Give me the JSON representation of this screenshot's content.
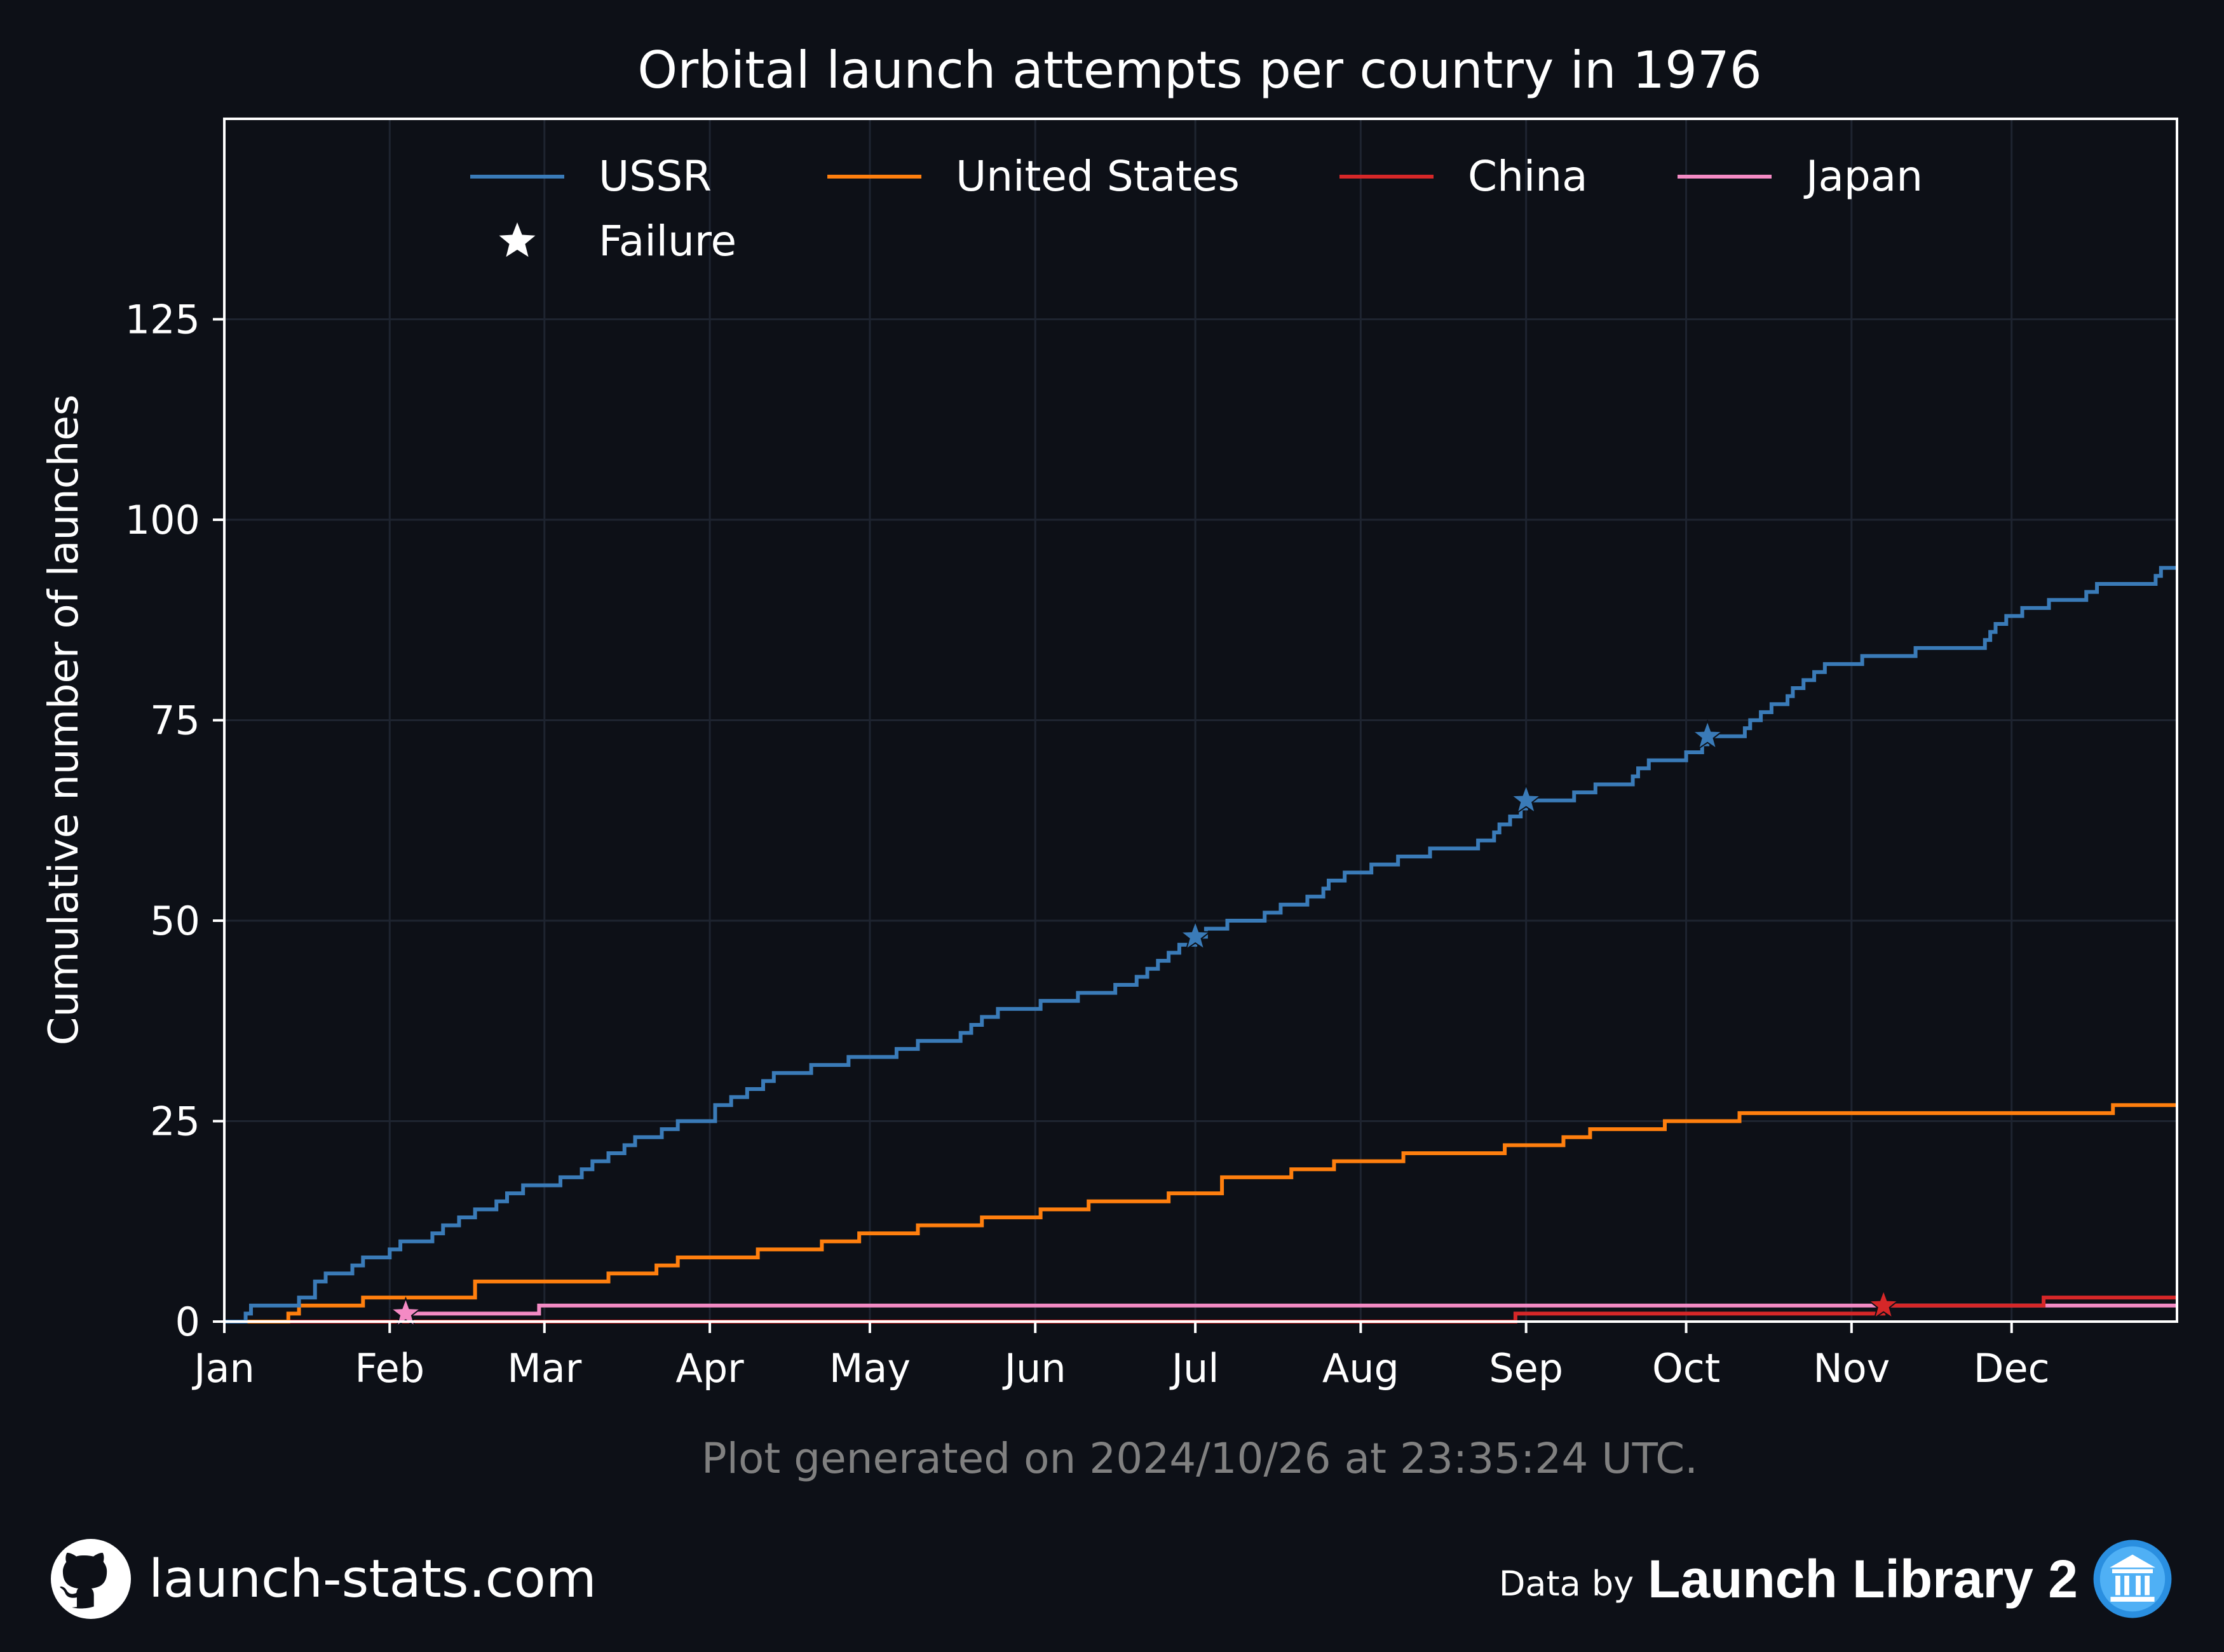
{
  "chart_data": {
    "type": "line",
    "step": true,
    "title": "Orbital launch attempts per country in 1976",
    "xlabel": "",
    "ylabel": "Cumulative number of launches",
    "xlim": [
      "1976-01-01",
      "1977-01-01"
    ],
    "ylim": [
      0,
      150
    ],
    "yticks": [
      0,
      25,
      50,
      75,
      100,
      125
    ],
    "xticks": [
      {
        "date": "1976-01-01",
        "label": "Jan"
      },
      {
        "date": "1976-02-01",
        "label": "Feb"
      },
      {
        "date": "1976-03-01",
        "label": "Mar"
      },
      {
        "date": "1976-04-01",
        "label": "Apr"
      },
      {
        "date": "1976-05-01",
        "label": "May"
      },
      {
        "date": "1976-06-01",
        "label": "Jun"
      },
      {
        "date": "1976-07-01",
        "label": "Jul"
      },
      {
        "date": "1976-08-01",
        "label": "Aug"
      },
      {
        "date": "1976-09-01",
        "label": "Sep"
      },
      {
        "date": "1976-10-01",
        "label": "Oct"
      },
      {
        "date": "1976-11-01",
        "label": "Nov"
      },
      {
        "date": "1976-12-01",
        "label": "Dec"
      }
    ],
    "grid": true,
    "legend_position": "top",
    "series": [
      {
        "name": "USSR",
        "color": "#3a7bb8",
        "x": [
          "1976-01-05",
          "1976-01-06",
          "1976-01-15",
          "1976-01-18",
          "1976-01-20",
          "1976-01-25",
          "1976-01-27",
          "1976-02-01",
          "1976-02-03",
          "1976-02-09",
          "1976-02-11",
          "1976-02-14",
          "1976-02-17",
          "1976-02-21",
          "1976-02-23",
          "1976-02-26",
          "1976-03-04",
          "1976-03-08",
          "1976-03-10",
          "1976-03-13",
          "1976-03-16",
          "1976-03-18",
          "1976-03-23",
          "1976-03-26",
          "1976-04-02",
          "1976-04-05",
          "1976-04-08",
          "1976-04-11",
          "1976-04-13",
          "1976-04-20",
          "1976-04-27",
          "1976-05-06",
          "1976-05-10",
          "1976-05-18",
          "1976-05-20",
          "1976-05-22",
          "1976-05-25",
          "1976-06-02",
          "1976-06-09",
          "1976-06-16",
          "1976-06-20",
          "1976-06-22",
          "1976-06-24",
          "1976-06-26",
          "1976-06-28",
          "1976-07-01",
          "1976-07-03",
          "1976-07-07",
          "1976-07-14",
          "1976-07-17",
          "1976-07-22",
          "1976-07-25",
          "1976-07-26",
          "1976-07-29",
          "1976-08-03",
          "1976-08-08",
          "1976-08-14",
          "1976-08-23",
          "1976-08-26",
          "1976-08-27",
          "1976-08-29",
          "1976-08-31",
          "1976-09-01",
          "1976-09-10",
          "1976-09-14",
          "1976-09-21",
          "1976-09-22",
          "1976-09-24",
          "1976-10-01",
          "1976-10-04",
          "1976-10-05",
          "1976-10-12",
          "1976-10-13",
          "1976-10-15",
          "1976-10-17",
          "1976-10-20",
          "1976-10-21",
          "1976-10-23",
          "1976-10-25",
          "1976-10-27",
          "1976-11-03",
          "1976-11-13",
          "1976-11-26",
          "1976-11-27",
          "1976-11-28",
          "1976-11-30",
          "1976-12-03",
          "1976-12-08",
          "1976-12-15",
          "1976-12-17",
          "1976-12-28",
          "1976-12-29"
        ],
        "y": [
          1,
          2,
          3,
          5,
          6,
          7,
          8,
          9,
          10,
          11,
          12,
          13,
          14,
          15,
          16,
          17,
          18,
          19,
          20,
          21,
          22,
          23,
          24,
          25,
          27,
          28,
          29,
          30,
          31,
          32,
          33,
          34,
          35,
          36,
          37,
          38,
          39,
          40,
          41,
          42,
          43,
          44,
          45,
          46,
          47,
          48,
          49,
          50,
          51,
          52,
          53,
          54,
          55,
          56,
          57,
          58,
          59,
          60,
          61,
          62,
          63,
          64,
          65,
          66,
          67,
          68,
          69,
          70,
          71,
          72,
          73,
          74,
          75,
          76,
          77,
          78,
          79,
          80,
          81,
          82,
          83,
          84,
          85,
          86,
          87,
          88,
          89,
          90,
          91,
          92,
          93,
          94
        ]
      },
      {
        "name": "United States",
        "color": "#ff7f0e",
        "x": [
          "1976-01-13",
          "1976-01-15",
          "1976-01-27",
          "1976-02-17",
          "1976-03-13",
          "1976-03-22",
          "1976-03-26",
          "1976-04-10",
          "1976-04-22",
          "1976-04-29",
          "1976-05-10",
          "1976-05-22",
          "1976-06-02",
          "1976-06-11",
          "1976-06-26",
          "1976-07-06",
          "1976-07-19",
          "1976-07-27",
          "1976-08-09",
          "1976-08-28",
          "1976-09-08",
          "1976-09-13",
          "1976-09-27",
          "1976-10-11",
          "1976-12-20"
        ],
        "y": [
          1,
          2,
          3,
          5,
          6,
          7,
          8,
          9,
          10,
          11,
          12,
          13,
          14,
          15,
          16,
          18,
          19,
          20,
          21,
          22,
          23,
          24,
          25,
          26,
          27
        ]
      },
      {
        "name": "China",
        "color": "#d62728",
        "x": [
          "1976-08-30",
          "1976-11-07",
          "1976-12-07"
        ],
        "y": [
          1,
          2,
          3
        ]
      },
      {
        "name": "Japan",
        "color": "#f48ac4",
        "x": [
          "1976-02-04",
          "1976-02-29"
        ],
        "y": [
          1,
          2
        ]
      }
    ],
    "failures": [
      {
        "series": "Japan",
        "x": "1976-02-04",
        "y": 1
      },
      {
        "series": "USSR",
        "x": "1976-07-01",
        "y": 48
      },
      {
        "series": "USSR",
        "x": "1976-09-01",
        "y": 65
      },
      {
        "series": "USSR",
        "x": "1976-10-05",
        "y": 73
      },
      {
        "series": "China",
        "x": "1976-11-07",
        "y": 2
      }
    ],
    "legend": [
      {
        "label": "USSR",
        "kind": "line",
        "color": "#3a7bb8"
      },
      {
        "label": "United States",
        "kind": "line",
        "color": "#ff7f0e"
      },
      {
        "label": "China",
        "kind": "line",
        "color": "#d62728"
      },
      {
        "label": "Japan",
        "kind": "line",
        "color": "#f48ac4"
      },
      {
        "label": "Failure",
        "kind": "star",
        "color": "#ffffff"
      }
    ],
    "colors": {
      "background": "#0d1017",
      "text": "#ffffff",
      "muted_text": "#808080",
      "grid": "#1e2430"
    }
  },
  "generated_note": "Plot generated on 2024/10/26 at 23:35:24 UTC.",
  "footer": {
    "site": "launch-stats.com",
    "site_icon": "github-icon",
    "data_by": "Data by",
    "library": "Launch Library 2",
    "library_icon": "launch-library-logo-icon"
  }
}
